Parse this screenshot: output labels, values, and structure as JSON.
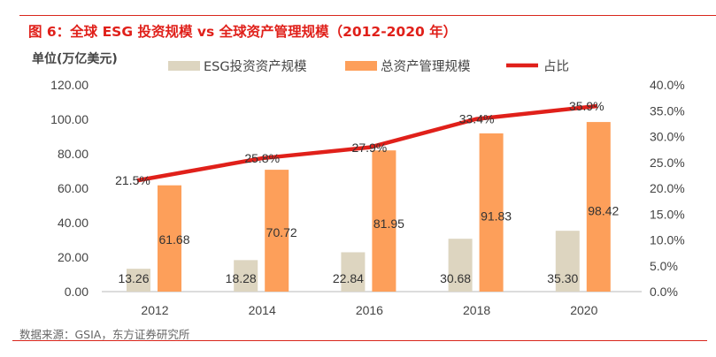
{
  "title": "图 6：全球 ESG 投资规模 vs 全球资产管理规模（2012-2020 年）",
  "source": "数据来源：GSIA，东方证券研究所",
  "chart_data": {
    "type": "bar",
    "ylabel": "单位(万亿美元)",
    "categories": [
      "2012",
      "2014",
      "2016",
      "2018",
      "2020"
    ],
    "ylim": [
      0,
      120
    ],
    "y2lim": [
      0,
      0.4
    ],
    "yticks": [
      "0.00",
      "20.00",
      "40.00",
      "60.00",
      "80.00",
      "100.00",
      "120.00"
    ],
    "y2ticks": [
      "0.0%",
      "5.0%",
      "10.0%",
      "15.0%",
      "20.0%",
      "25.0%",
      "30.0%",
      "35.0%",
      "40.0%"
    ],
    "legend_position": "top",
    "grid": false,
    "series": [
      {
        "name": "ESG投资资产规模",
        "type": "bar",
        "color": "#ddd5c0",
        "values": [
          13.26,
          18.28,
          22.84,
          30.68,
          35.3
        ],
        "labels": [
          "13.26",
          "18.28",
          "22.84",
          "30.68",
          "35.30"
        ]
      },
      {
        "name": "总资产管理规模",
        "type": "bar",
        "color": "#fd9f5a",
        "values": [
          61.68,
          70.72,
          81.95,
          91.83,
          98.42
        ],
        "labels": [
          "61.68",
          "70.72",
          "81.95",
          "91.83",
          "98.42"
        ]
      },
      {
        "name": "占比",
        "type": "line",
        "axis": "right",
        "color": "#e0201a",
        "values": [
          0.215,
          0.258,
          0.279,
          0.334,
          0.359
        ],
        "labels": [
          "21.5%",
          "25.8%",
          "27.9%",
          "33.4%",
          "35.9%"
        ]
      }
    ]
  }
}
